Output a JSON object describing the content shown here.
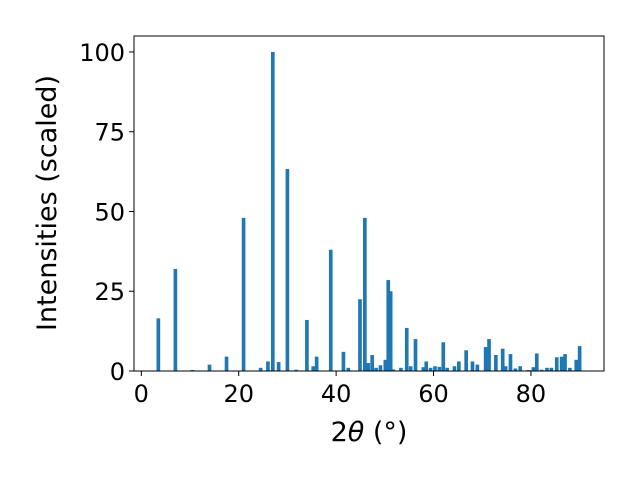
{
  "chart_data": {
    "type": "bar",
    "xlabel_prefix": "2",
    "xlabel_symbol": "θ",
    "xlabel_unit": " (°)",
    "ylabel": "Intensities (scaled)",
    "xlim": [
      -1.5,
      95
    ],
    "ylim": [
      0,
      105
    ],
    "xticks": [
      0,
      20,
      40,
      60,
      80
    ],
    "yticks": [
      0,
      25,
      50,
      75,
      100
    ],
    "bar_color": "#1f77b4",
    "bar_width": 0.75,
    "grid": false,
    "x": [
      3.5,
      7.0,
      10.5,
      14.0,
      17.5,
      21.0,
      24.5,
      26.0,
      27.0,
      28.2,
      30.0,
      31.8,
      34.0,
      35.3,
      36.0,
      38.9,
      41.5,
      42.5,
      44.9,
      45.9,
      46.6,
      47.4,
      48.2,
      49.1,
      50.1,
      50.7,
      51.2,
      51.7,
      53.3,
      54.5,
      55.3,
      56.3,
      57.9,
      58.5,
      59.4,
      60.3,
      61.2,
      62.0,
      62.8,
      64.3,
      65.2,
      66.7,
      68.0,
      69.0,
      70.7,
      71.4,
      72.8,
      74.2,
      74.8,
      75.8,
      76.8,
      77.8,
      79.5,
      80.5,
      81.2,
      82.2,
      83.3,
      84.2,
      85.3,
      86.3,
      87.0,
      88.0,
      89.3,
      90.0
    ],
    "values": [
      16.5,
      32.0,
      0.3,
      2.0,
      4.5,
      48.0,
      1.0,
      3.0,
      100.0,
      2.8,
      63.3,
      0.4,
      16.0,
      1.5,
      4.5,
      38.0,
      6.0,
      1.0,
      22.5,
      48.0,
      2.5,
      5.0,
      1.0,
      1.8,
      3.5,
      28.5,
      25.0,
      0.5,
      1.0,
      13.5,
      1.5,
      10.0,
      1.2,
      3.0,
      1.0,
      1.5,
      1.3,
      9.0,
      1.0,
      1.5,
      3.0,
      6.5,
      3.0,
      2.0,
      7.5,
      10.0,
      5.0,
      7.0,
      1.5,
      5.3,
      0.8,
      1.5,
      0.3,
      1.2,
      5.5,
      0.4,
      1.0,
      1.0,
      4.3,
      4.5,
      5.3,
      1.0,
      3.5,
      7.8
    ]
  }
}
